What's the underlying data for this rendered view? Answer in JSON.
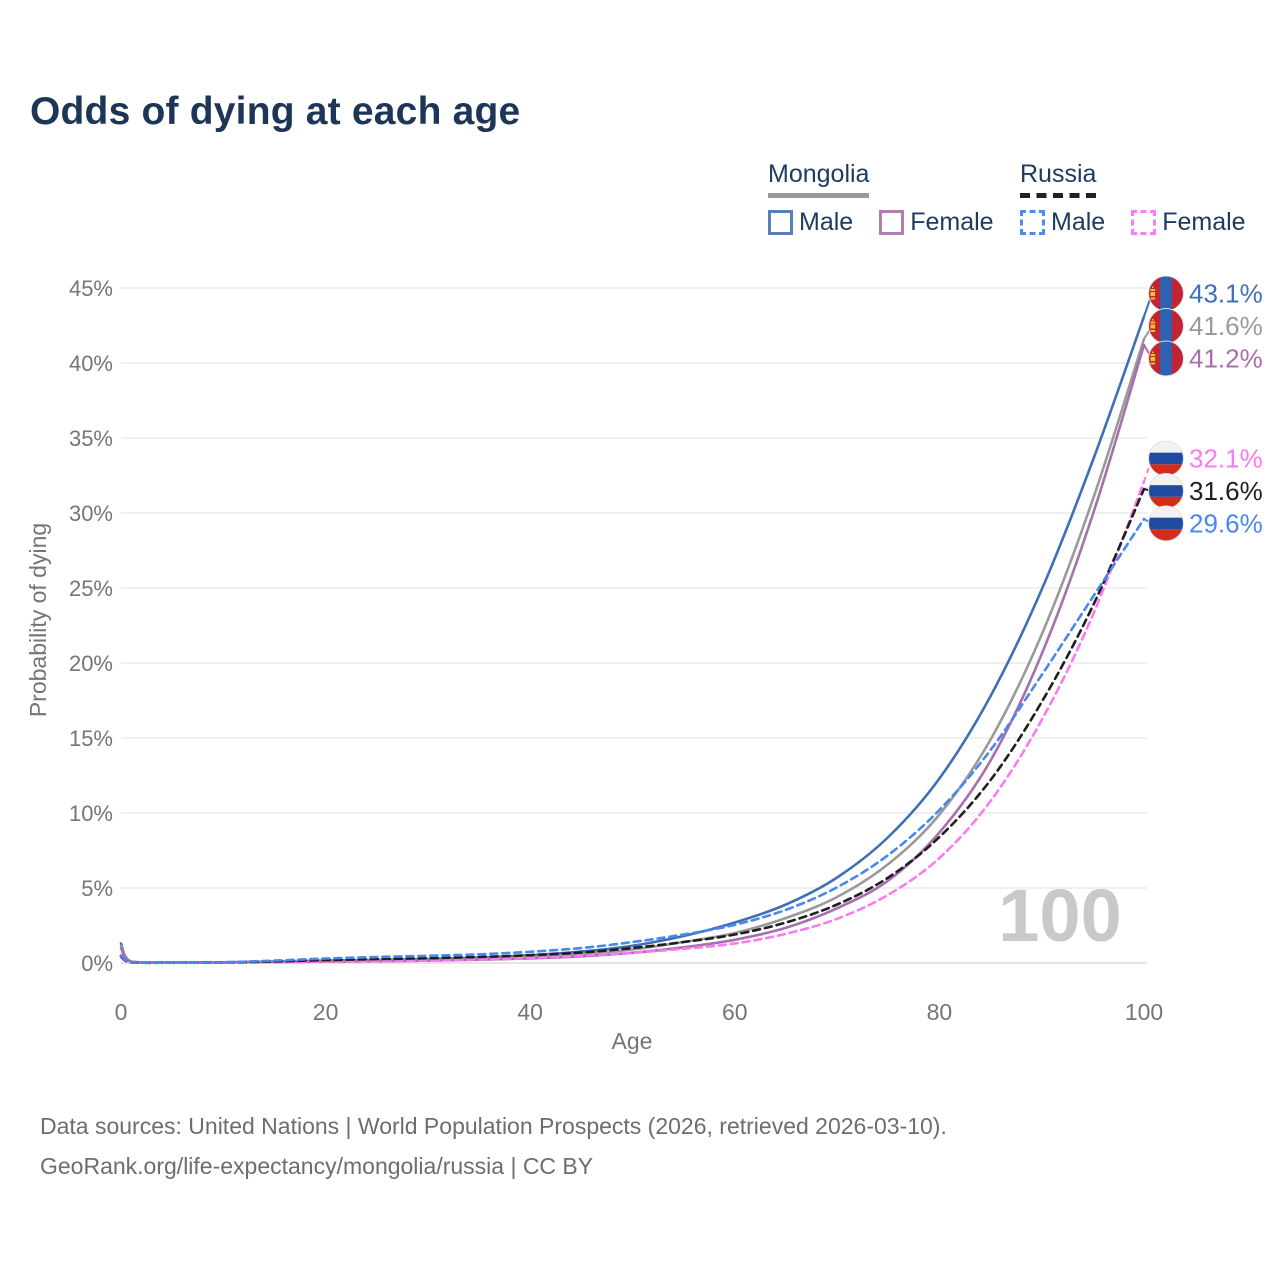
{
  "title": "Odds of dying at each age",
  "legend": {
    "groups": [
      {
        "country": "Mongolia",
        "line_style": "solid",
        "underline_color": "#9a9a9a",
        "items": [
          {
            "label": "Male",
            "color": "#5580bb"
          },
          {
            "label": "Female",
            "color": "#b47cb5"
          }
        ]
      },
      {
        "country": "Russia",
        "line_style": "dashed",
        "underline_color": "#222222",
        "items": [
          {
            "label": "Male",
            "color": "#4d8bf5"
          },
          {
            "label": "Female",
            "color": "#fb7cf4"
          }
        ]
      }
    ]
  },
  "watermark": "100",
  "footer": {
    "line1": "Data sources: United Nations | World Population Prospects (2026, retrieved 2026-03-10).",
    "line2": "GeoRank.org/life-expectancy/mongolia/russia | CC BY"
  },
  "chart_data": {
    "type": "line",
    "title": "Odds of dying at each age",
    "xlabel": "Age",
    "ylabel": "Probability of dying",
    "xlim": [
      0,
      100
    ],
    "ylim": [
      0,
      45
    ],
    "grid": "horizontal",
    "x_ticks": [
      "0",
      "20",
      "40",
      "60",
      "80",
      "100"
    ],
    "y_ticks": [
      "0%",
      "5%",
      "10%",
      "15%",
      "20%",
      "25%",
      "30%",
      "35%",
      "40%",
      "45%"
    ],
    "ages": [
      0,
      1,
      5,
      10,
      15,
      20,
      25,
      30,
      35,
      40,
      45,
      50,
      55,
      60,
      65,
      70,
      75,
      80,
      85,
      90,
      95,
      100
    ],
    "series": [
      {
        "name": "Mongolia Male",
        "country": "Mongolia",
        "sex": "Male",
        "style": "solid",
        "color": "#3f6fb5",
        "flag": "mongolia",
        "end_label": "43.1%",
        "values_pct": [
          1.3,
          0.1,
          0.04,
          0.05,
          0.11,
          0.16,
          0.21,
          0.27,
          0.37,
          0.52,
          0.76,
          1.15,
          1.8,
          2.7,
          3.9,
          5.7,
          8.4,
          12.3,
          17.8,
          24.9,
          33.5,
          43.1
        ]
      },
      {
        "name": "Mongolia Both sexes",
        "country": "Mongolia",
        "sex": "Both",
        "style": "solid",
        "color": "#9a9a9a",
        "flag": "mongolia",
        "end_label": "41.6%",
        "values_pct": [
          1.15,
          0.09,
          0.03,
          0.04,
          0.08,
          0.12,
          0.16,
          0.21,
          0.28,
          0.4,
          0.59,
          0.9,
          1.4,
          2.0,
          3.0,
          4.4,
          6.6,
          9.9,
          14.9,
          21.9,
          30.9,
          41.6
        ]
      },
      {
        "name": "Mongolia Female",
        "country": "Mongolia",
        "sex": "Female",
        "style": "solid",
        "color": "#a76fad",
        "flag": "mongolia",
        "end_label": "41.2%",
        "values_pct": [
          1.0,
          0.08,
          0.03,
          0.04,
          0.06,
          0.09,
          0.12,
          0.16,
          0.22,
          0.31,
          0.45,
          0.68,
          1.05,
          1.55,
          2.35,
          3.65,
          5.5,
          8.7,
          13.5,
          20.6,
          29.9,
          41.2
        ]
      },
      {
        "name": "Russia Female",
        "country": "Russia",
        "sex": "Female",
        "style": "dashed",
        "color": "#fb79f1",
        "flag": "russia",
        "end_label": "32.1%",
        "values_pct": [
          0.4,
          0.04,
          0.02,
          0.03,
          0.06,
          0.09,
          0.13,
          0.17,
          0.24,
          0.34,
          0.48,
          0.68,
          0.95,
          1.3,
          1.95,
          2.95,
          4.55,
          7.0,
          10.8,
          16.2,
          23.2,
          32.1
        ]
      },
      {
        "name": "Russia Both sexes",
        "country": "Russia",
        "sex": "Both",
        "style": "dashed",
        "color": "#1f1f1f",
        "flag": "russia",
        "end_label": "31.6%",
        "values_pct": [
          0.45,
          0.04,
          0.02,
          0.04,
          0.1,
          0.19,
          0.26,
          0.32,
          0.4,
          0.52,
          0.7,
          1.0,
          1.4,
          1.9,
          2.7,
          3.9,
          5.7,
          8.4,
          12.2,
          17.4,
          23.8,
          31.6
        ]
      },
      {
        "name": "Russia Male",
        "country": "Russia",
        "sex": "Male",
        "style": "dashed",
        "color": "#4a87ee",
        "flag": "russia",
        "end_label": "29.6%",
        "values_pct": [
          0.5,
          0.05,
          0.02,
          0.05,
          0.16,
          0.3,
          0.4,
          0.48,
          0.58,
          0.75,
          1.0,
          1.4,
          1.9,
          2.55,
          3.55,
          5.05,
          7.2,
          10.2,
          14.2,
          19.2,
          24.4,
          29.6
        ]
      }
    ]
  }
}
